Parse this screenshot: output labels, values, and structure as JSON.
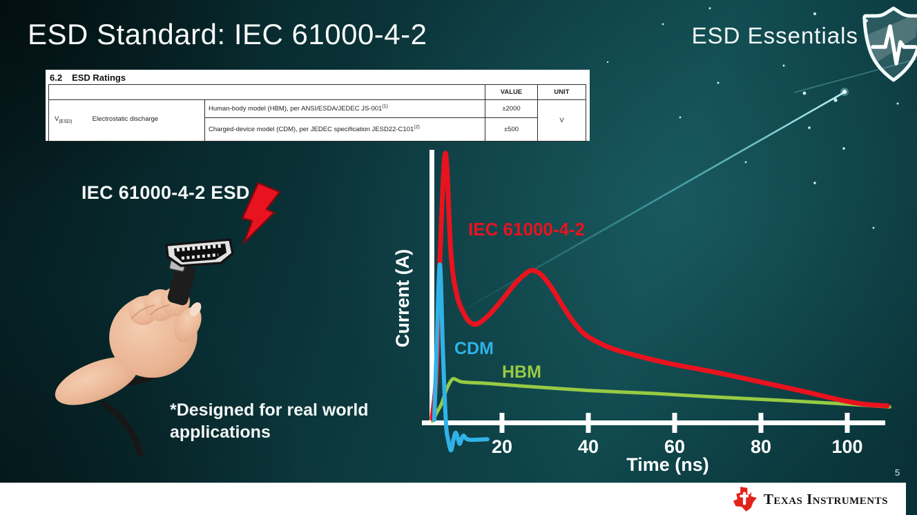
{
  "slide": {
    "title": "ESD Standard: IEC 61000-4-2",
    "brand": "ESD Essentials",
    "illustration_label": "IEC 61000-4-2 ESD",
    "footnote": "*Designed for real world applications",
    "page_number": "5"
  },
  "ratings_table": {
    "section": "6.2",
    "section_title": "ESD Ratings",
    "col_value": "VALUE",
    "col_unit": "UNIT",
    "row_symbol": "V",
    "row_symbol_sub": "(ESD)",
    "row_label": "Electrostatic discharge",
    "rows": [
      {
        "desc": "Human-body model (HBM), per ANSI/ESDA/JEDEC JS-001",
        "sup": "(1)",
        "value": "±2000"
      },
      {
        "desc": "Charged-device model (CDM), per JEDEC specification JESD22-C101",
        "sup": "(2)",
        "value": "±500"
      }
    ],
    "unit": "V"
  },
  "chart_data": {
    "type": "line",
    "xlabel": "Time (ns)",
    "ylabel": "Current (A)",
    "xlim": [
      0,
      112
    ],
    "xticks": [
      20,
      40,
      60,
      80,
      100
    ],
    "grid": false,
    "legend_position": "inline-labels",
    "series": [
      {
        "name": "IEC 61000-4-2",
        "color": "#e8131f",
        "points": [
          [
            3.8,
            0.015
          ],
          [
            4.8,
            0.18
          ],
          [
            5.6,
            0.6
          ],
          [
            6.9,
            1.0
          ],
          [
            8.2,
            0.62
          ],
          [
            9.6,
            0.47
          ],
          [
            11.5,
            0.395
          ],
          [
            13,
            0.368
          ],
          [
            14.5,
            0.368
          ],
          [
            17,
            0.4
          ],
          [
            20,
            0.455
          ],
          [
            23,
            0.515
          ],
          [
            25.5,
            0.553
          ],
          [
            27,
            0.565
          ],
          [
            29,
            0.55
          ],
          [
            31.5,
            0.5
          ],
          [
            34,
            0.435
          ],
          [
            36.5,
            0.375
          ],
          [
            39,
            0.33
          ],
          [
            42,
            0.3
          ],
          [
            46,
            0.272
          ],
          [
            52,
            0.245
          ],
          [
            60,
            0.215
          ],
          [
            70,
            0.185
          ],
          [
            80,
            0.15
          ],
          [
            90,
            0.115
          ],
          [
            98,
            0.085
          ],
          [
            104,
            0.068
          ],
          [
            109.3,
            0.062
          ]
        ]
      },
      {
        "name": "CDM",
        "color": "#30b2e7",
        "points": [
          [
            4.3,
            0.01
          ],
          [
            4.8,
            0.25
          ],
          [
            5.6,
            0.587
          ],
          [
            6.3,
            0.27
          ],
          [
            7.0,
            0.0
          ],
          [
            7.6,
            -0.07
          ],
          [
            8.2,
            -0.103
          ],
          [
            8.8,
            -0.06
          ],
          [
            9.3,
            -0.038
          ],
          [
            9.8,
            -0.062
          ],
          [
            10.2,
            -0.079
          ],
          [
            10.7,
            -0.058
          ],
          [
            11.1,
            -0.049
          ],
          [
            11.7,
            -0.06
          ],
          [
            12.5,
            -0.064
          ],
          [
            14,
            -0.064
          ],
          [
            16.6,
            -0.062
          ]
        ]
      },
      {
        "name": "HBM",
        "color": "#97ca44",
        "points": [
          [
            3.9,
            0.005
          ],
          [
            5,
            0.04
          ],
          [
            6,
            0.07
          ],
          [
            7.2,
            0.125
          ],
          [
            8.5,
            0.161
          ],
          [
            9.5,
            0.158
          ],
          [
            10.6,
            0.151
          ],
          [
            13,
            0.148
          ],
          [
            16,
            0.146
          ],
          [
            25,
            0.135
          ],
          [
            40,
            0.119
          ],
          [
            55,
            0.108
          ],
          [
            70,
            0.094
          ],
          [
            85,
            0.082
          ],
          [
            97,
            0.071
          ],
          [
            104,
            0.064
          ],
          [
            109.8,
            0.058
          ]
        ]
      }
    ]
  },
  "footer": {
    "company": "Texas Instruments"
  },
  "icons": {
    "shield": "shield-pulse-icon",
    "bolt": "lightning-bolt-icon",
    "ti_logo": "ti-bug-icon"
  }
}
